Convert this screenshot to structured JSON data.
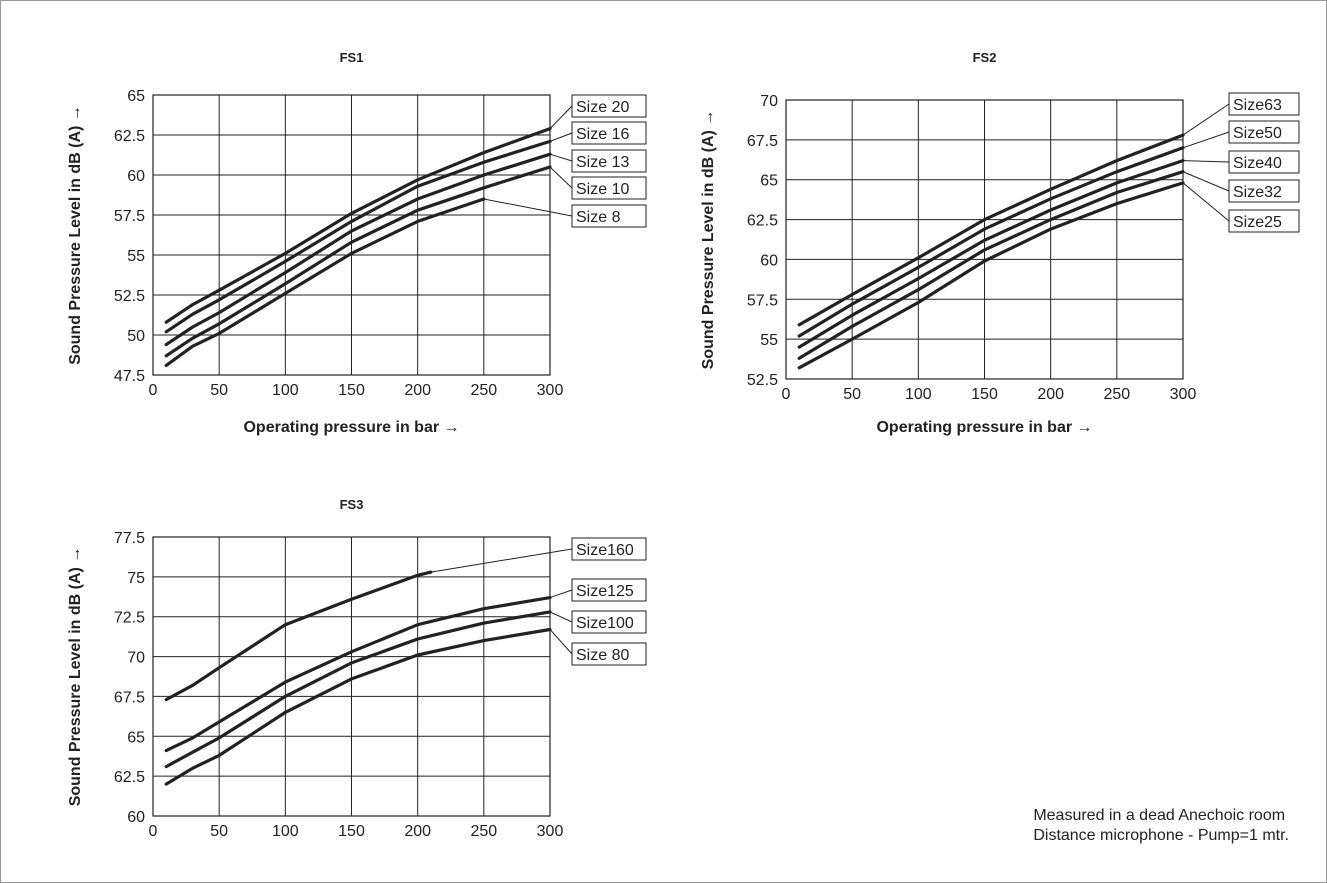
{
  "note": {
    "line1": "Measured in a dead Anechoic room",
    "line2": "Distance microphone - Pump=1 mtr."
  },
  "colors": {
    "line": "#222222",
    "grid": "#222222",
    "text": "#222222"
  },
  "chart_data": [
    {
      "type": "line",
      "title": "FS1",
      "xlabel": "Operating pressure in bar",
      "ylabel": "Sound Pressure Level in dB (A)",
      "xlim": [
        0,
        300
      ],
      "ylim": [
        47.5,
        65
      ],
      "x_ticks": [
        "0",
        "50",
        "100",
        "150",
        "200",
        "250",
        "300"
      ],
      "y_ticks": [
        "47.5",
        "50",
        "52.5",
        "55",
        "57.5",
        "60",
        "62.5",
        "65"
      ],
      "grid": true,
      "series": [
        {
          "name": "Size 20",
          "x": [
            10,
            30,
            50,
            100,
            150,
            200,
            250,
            300
          ],
          "y": [
            50.8,
            51.9,
            52.8,
            55.1,
            57.6,
            59.7,
            61.4,
            62.9
          ]
        },
        {
          "name": "Size 16",
          "x": [
            10,
            30,
            50,
            100,
            150,
            200,
            250,
            300
          ],
          "y": [
            50.2,
            51.3,
            52.2,
            54.6,
            57.1,
            59.3,
            60.8,
            62.1
          ]
        },
        {
          "name": "Size 13",
          "x": [
            10,
            30,
            50,
            100,
            150,
            200,
            250,
            300
          ],
          "y": [
            49.4,
            50.5,
            51.4,
            53.9,
            56.5,
            58.5,
            60.0,
            61.3
          ]
        },
        {
          "name": "Size 10",
          "x": [
            10,
            30,
            50,
            100,
            150,
            200,
            250,
            300
          ],
          "y": [
            48.7,
            49.8,
            50.7,
            53.2,
            55.8,
            57.8,
            59.2,
            60.5
          ]
        },
        {
          "name": "Size 8",
          "x": [
            10,
            30,
            50,
            100,
            150,
            200,
            250
          ],
          "y": [
            48.1,
            49.3,
            50.1,
            52.6,
            55.1,
            57.1,
            58.5
          ]
        }
      ]
    },
    {
      "type": "line",
      "title": "FS2",
      "xlabel": "Operating pressure in bar",
      "ylabel": "Sound Pressure Level in dB (A)",
      "xlim": [
        0,
        300
      ],
      "ylim": [
        52.5,
        70
      ],
      "x_ticks": [
        "0",
        "50",
        "100",
        "150",
        "200",
        "250",
        "300"
      ],
      "y_ticks": [
        "52.5",
        "55",
        "57.5",
        "60",
        "62.5",
        "65",
        "67.5",
        "70"
      ],
      "grid": true,
      "series": [
        {
          "name": "Size63",
          "x": [
            10,
            50,
            100,
            150,
            200,
            250,
            300
          ],
          "y": [
            55.9,
            57.8,
            60.1,
            62.5,
            64.4,
            66.2,
            67.8
          ]
        },
        {
          "name": "Size50",
          "x": [
            10,
            50,
            100,
            150,
            200,
            250,
            300
          ],
          "y": [
            55.2,
            57.2,
            59.5,
            61.9,
            63.8,
            65.5,
            67.0
          ]
        },
        {
          "name": "Size40",
          "x": [
            10,
            50,
            100,
            150,
            200,
            250,
            300
          ],
          "y": [
            54.5,
            56.5,
            58.8,
            61.2,
            63.1,
            64.8,
            66.2
          ]
        },
        {
          "name": "Size32",
          "x": [
            10,
            50,
            100,
            150,
            200,
            250,
            300
          ],
          "y": [
            53.8,
            55.8,
            58.1,
            60.6,
            62.5,
            64.2,
            65.5
          ]
        },
        {
          "name": "Size25",
          "x": [
            10,
            50,
            100,
            150,
            200,
            250,
            300
          ],
          "y": [
            53.2,
            55.0,
            57.3,
            59.9,
            61.9,
            63.5,
            64.8
          ]
        }
      ]
    },
    {
      "type": "line",
      "title": "FS3",
      "xlabel": "",
      "ylabel": "Sound Pressure Level in dB (A)",
      "xlim": [
        0,
        300
      ],
      "ylim": [
        60,
        77.5
      ],
      "x_ticks": [
        "0",
        "50",
        "100",
        "150",
        "200",
        "250",
        "300"
      ],
      "y_ticks": [
        "60",
        "62.5",
        "65",
        "67.5",
        "70",
        "72.5",
        "75",
        "77.5"
      ],
      "grid": true,
      "series": [
        {
          "name": "Size160",
          "x": [
            10,
            30,
            50,
            100,
            150,
            200,
            210
          ],
          "y": [
            67.3,
            68.2,
            69.3,
            72.0,
            73.6,
            75.1,
            75.3
          ]
        },
        {
          "name": "Size125",
          "x": [
            10,
            30,
            50,
            100,
            150,
            200,
            250,
            300
          ],
          "y": [
            64.1,
            64.9,
            65.9,
            68.4,
            70.3,
            72.0,
            73.0,
            73.7
          ]
        },
        {
          "name": "Size100",
          "x": [
            10,
            30,
            50,
            100,
            150,
            200,
            250,
            300
          ],
          "y": [
            63.1,
            64.0,
            64.9,
            67.5,
            69.6,
            71.1,
            72.1,
            72.8
          ]
        },
        {
          "name": "Size 80",
          "x": [
            10,
            30,
            50,
            100,
            150,
            200,
            250,
            300
          ],
          "y": [
            62.0,
            63.0,
            63.8,
            66.5,
            68.6,
            70.1,
            71.0,
            71.7
          ]
        }
      ]
    }
  ]
}
